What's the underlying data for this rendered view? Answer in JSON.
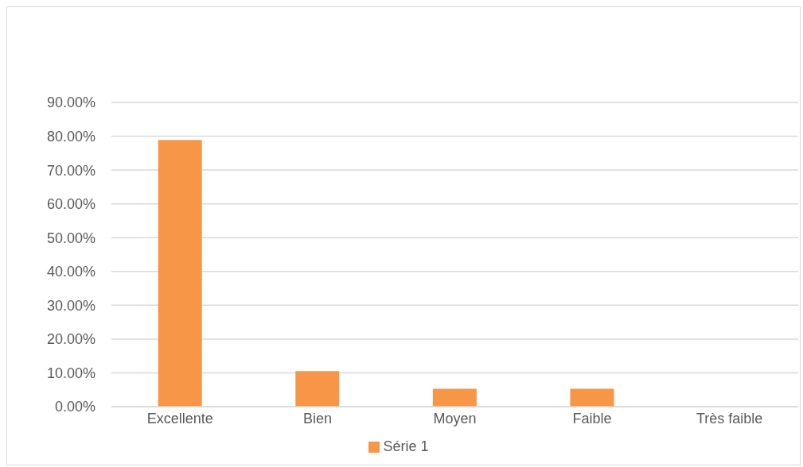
{
  "chart_data": {
    "type": "bar",
    "categories": [
      "Excellente",
      "Bien",
      "Moyen",
      "Faible",
      "Très faible"
    ],
    "series": [
      {
        "name": "Série 1",
        "color": "#f79646",
        "values": [
          78.9,
          10.5,
          5.3,
          5.3,
          0
        ]
      }
    ],
    "ylim": [
      0,
      90
    ],
    "yticks": [
      {
        "value": 0,
        "label": "0.00%"
      },
      {
        "value": 10,
        "label": "10.00%"
      },
      {
        "value": 20,
        "label": "20.00%"
      },
      {
        "value": 30,
        "label": "30.00%"
      },
      {
        "value": 40,
        "label": "40.00%"
      },
      {
        "value": 50,
        "label": "50.00%"
      },
      {
        "value": 60,
        "label": "60.00%"
      },
      {
        "value": 70,
        "label": "70.00%"
      },
      {
        "value": 80,
        "label": "80.00%"
      },
      {
        "value": 90,
        "label": "90.00%"
      }
    ],
    "grid": "y",
    "legend": "bottom"
  }
}
